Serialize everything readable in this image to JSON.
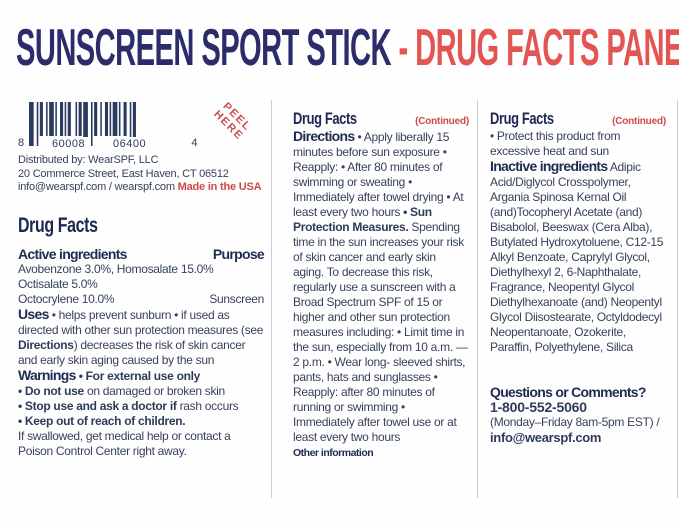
{
  "colors": {
    "navy": "#2b2d6a",
    "coral": "#e25553",
    "red": "#cd4a47",
    "body": "#36425c"
  },
  "title": {
    "main": "SUNSCREEN SPORT STICK ",
    "accent": "- DRUG FACTS PANEL"
  },
  "barcode": {
    "digit_left": "8",
    "group1": "60008",
    "group2": "06400",
    "digit_right": "4",
    "peel_line1": "PEEL",
    "peel_line2": "HERE"
  },
  "distributor": {
    "line1": "Distributed by:  WearSPF, LLC",
    "line2": "20 Commerce Street, East Haven, CT 06512",
    "line3_main": "info@wearspf.com / wearspf.com ",
    "line3_made": "Made in the USA"
  },
  "left_panel": {
    "heading": "Drug Facts",
    "active_label": "Active ingredients",
    "purpose_label": "Purpose",
    "ingredient_line1": "Avobenzone 3.0%, Homosalate 15.0%",
    "ingredient_line2": "Octisalate 5.0%",
    "ingredient_line3": "Octocrylene 10.0%",
    "purpose_value": "Sunscreen",
    "uses": {
      "label": "Uses",
      "part1": " • helps prevent sunburn • if used as directed with other sun protection measures (see ",
      "directions_bold": "Directions",
      "part2": ") decreases the risk of skin cancer and early skin aging caused by the sun"
    },
    "warnings": {
      "label": "Warnings",
      "bullet0": " • For external use only",
      "b1_bold": "• Do not use",
      "b1_rest": " on damaged or broken skin",
      "b2_bold": "• Stop use and ask a doctor if",
      "b2_rest": " rash occurs",
      "b3_bold": "• Keep out of reach of children.",
      "footer": "If swallowed, get medical help or contact a Poison Control Center right away."
    }
  },
  "middle_panel": {
    "heading": "Drug Facts",
    "continued": "(Continued)",
    "directions_label": "Directions",
    "text1": " • Apply liberally 15 minutes before sun exposure • Reapply: • After 80 minutes of swimming or sweating • Immediately after towel drying • At least every two hours ",
    "sun_bold": "• Sun Protection Measures.",
    "text2": " Spending time in the sun increases your risk of skin cancer and early skin aging. To decrease this risk, regularly use a sunscreen with a Broad Spectrum SPF of 15 or higher and other sun protection measures including: • Limit time in the sun, especially from 10 a.m. — 2 p.m. • Wear long- sleeved shirts, pants, hats and sunglasses • Reapply: after 80 minutes of running or swimming • Immediately after towel use or at least every two hours",
    "other_info_label": "Other information"
  },
  "right_panel": {
    "heading": "Drug Facts",
    "continued": "(Continued)",
    "protect": "• Protect this product from excessive heat and sun",
    "inactive_label": "Inactive ingredients",
    "inactive_text": " Adipic Acid/Diglycol Crosspolymer, Argania Spinosa Kernal Oil (and)Tocopheryl Acetate (and) Bisabolol, Beeswax (Cera Alba), Butylated Hydroxytoluene, C12-15 Alkyl Benzoate, Caprylyl Glycol, Diethylhexyl 2, 6-Naphthalate, Fragrance, Neopentyl Glycol Diethylhexanoate (and) Neopentyl Glycol Diisostearate, Octyldodecyl Neopentanoate, Ozokerite, Paraffin, Polyethylene, Silica",
    "questions_label": "Questions or Comments?",
    "phone": "1-800-552-5060",
    "hours": "(Monday–Friday 8am-5pm EST) /",
    "email": "info@wearspf.com"
  }
}
